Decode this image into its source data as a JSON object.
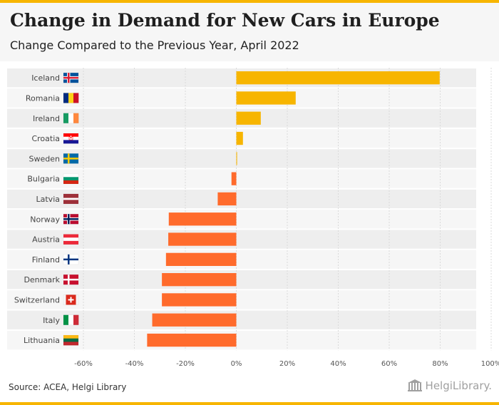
{
  "header": {
    "title": "Change in Demand for New Cars in Europe",
    "subtitle": "Change Compared to the Previous Year, April 2022"
  },
  "footer": {
    "source": "Source: ACEA, Helgi Library",
    "logo_text": "HelgiLibrary."
  },
  "colors": {
    "positive": "#f7b500",
    "negative": "#ff6b2c",
    "accent": "#f7b500"
  },
  "chart_data": {
    "type": "bar",
    "orientation": "horizontal",
    "title": "Change in Demand for New Cars in Europe",
    "subtitle": "Change Compared to the Previous Year, April 2022",
    "categories": [
      "Iceland",
      "Romania",
      "Ireland",
      "Croatia",
      "Sweden",
      "Bulgaria",
      "Latvia",
      "Norway",
      "Austria",
      "Finland",
      "Denmark",
      "Switzerland",
      "Italy",
      "Lithuania"
    ],
    "values": [
      79.8,
      23.3,
      9.6,
      2.6,
      0.3,
      -1.9,
      -7.3,
      -26.5,
      -26.7,
      -27.6,
      -29.2,
      -29.2,
      -33.0,
      -35.0
    ],
    "xlim": [
      -60,
      100
    ],
    "xticks": [
      -60,
      -40,
      -20,
      0,
      20,
      40,
      60,
      80,
      100
    ],
    "tick_labels": [
      "-60%",
      "-40%",
      "-20%",
      "0%",
      "20%",
      "40%",
      "60%",
      "80%",
      "100%"
    ],
    "grid": true,
    "flags": [
      "iceland-flag",
      "romania-flag",
      "ireland-flag",
      "croatia-flag",
      "sweden-flag",
      "bulgaria-flag",
      "latvia-flag",
      "norway-flag",
      "austria-flag",
      "finland-flag",
      "denmark-flag",
      "switzerland-flag",
      "italy-flag",
      "lithuania-flag"
    ]
  }
}
